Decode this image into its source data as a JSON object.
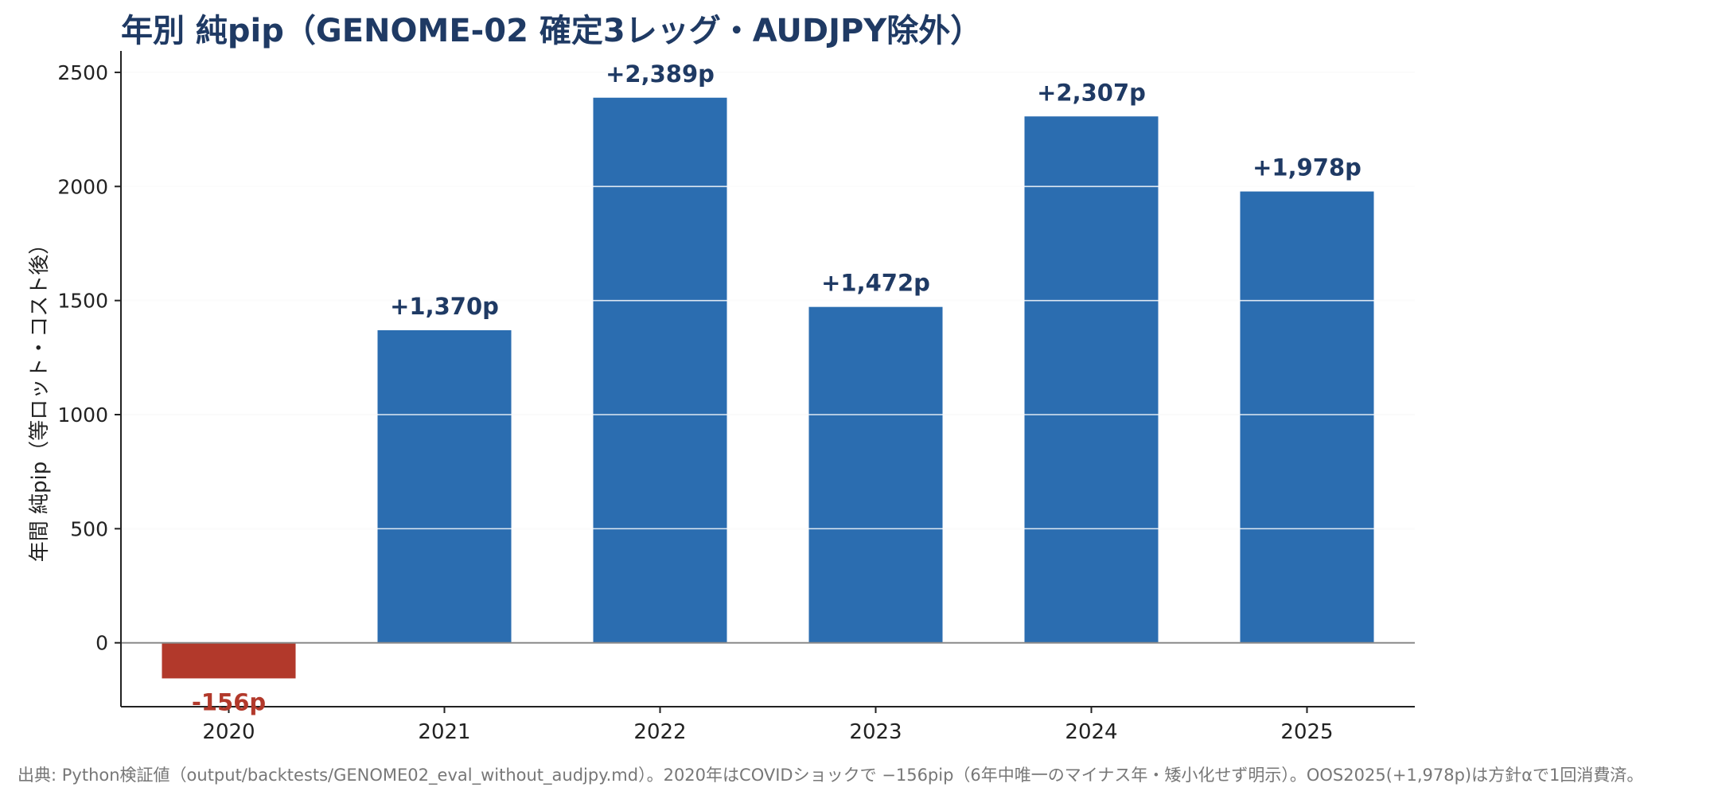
{
  "chart_data": {
    "type": "bar",
    "title": "年別 純pip（GENOME-02 確定3レッグ・AUDJPY除外）",
    "ylabel": "年間 純pip（等ロット・コスト後）",
    "xlabel": "",
    "categories": [
      "2020",
      "2021",
      "2022",
      "2023",
      "2024",
      "2025"
    ],
    "values": [
      -156,
      1370,
      2389,
      1472,
      2307,
      1978
    ],
    "data_labels": [
      "-156p",
      "+1,370p",
      "+2,389p",
      "+1,472p",
      "+2,307p",
      "+1,978p"
    ],
    "ylim": [
      -280,
      2580
    ],
    "yticks": [
      0,
      500,
      1000,
      1500,
      2000,
      2500
    ],
    "grid": true,
    "colors": {
      "positive": "#2b6db0",
      "negative": "#b2392b",
      "positive_label": "#1f3a64",
      "negative_label": "#b2392b",
      "title": "#1f3a64",
      "grid": "#e6e6e6",
      "zero_line": "#8a8a8a",
      "axis": "#222222"
    }
  },
  "source_note": "出典: Python検証値（output/backtests/GENOME02_eval_without_audjpy.md）。2020年はCOVIDショックで −156pip（6年中唯一のマイナス年・矮小化せず明示）。OOS2025(+1,978p)は方針αで1回消費済。"
}
